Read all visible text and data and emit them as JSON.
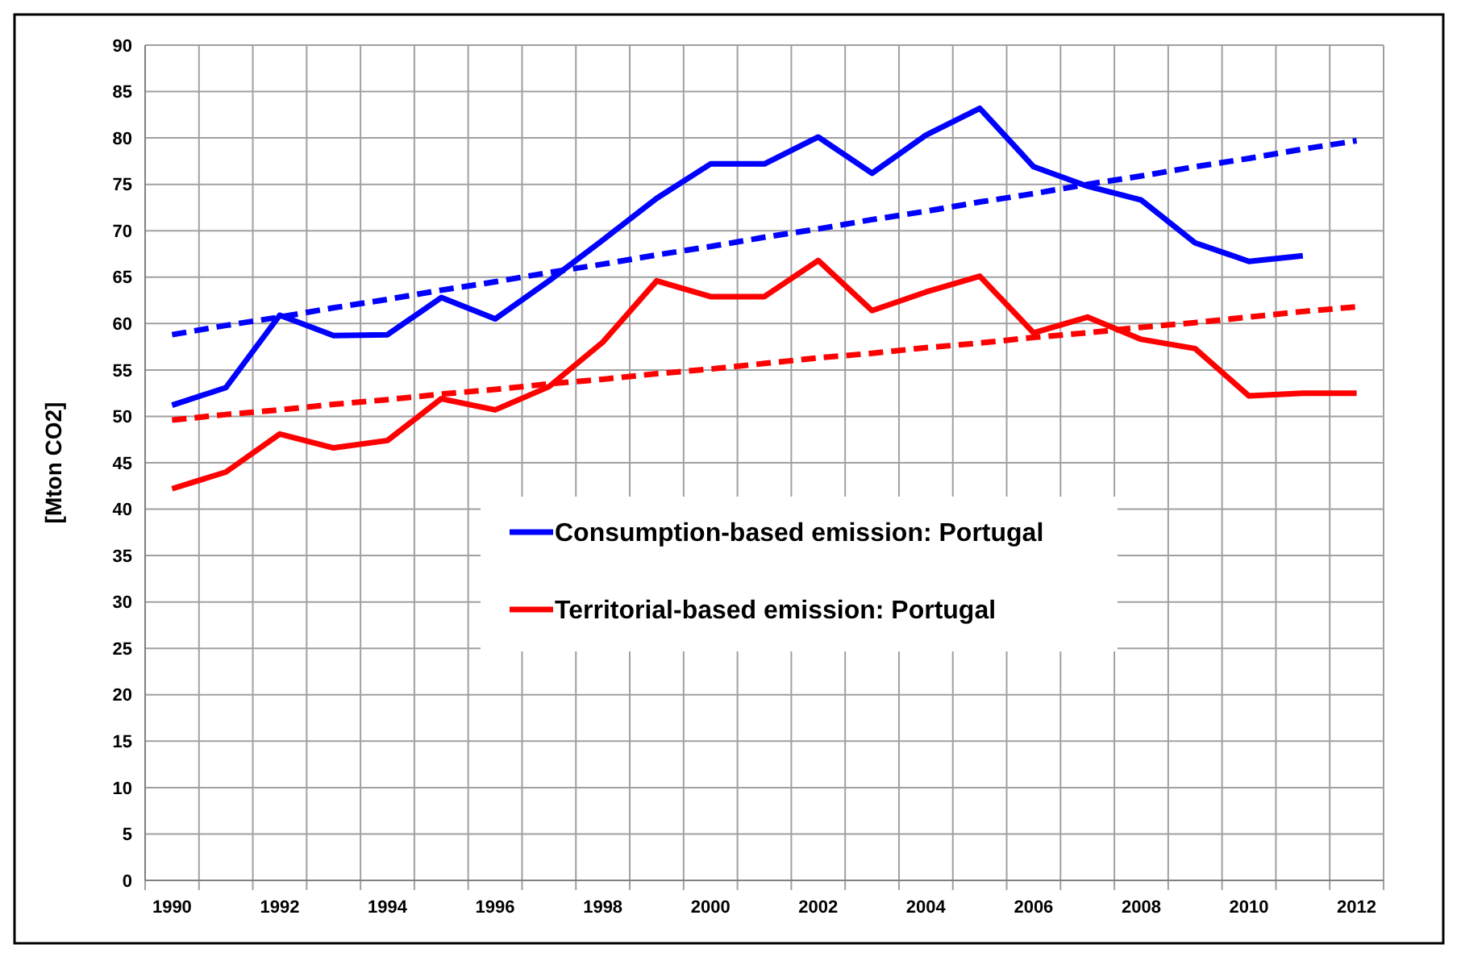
{
  "chart_data": {
    "type": "line",
    "ylabel": "[Mton CO2]",
    "categories": [
      "1990",
      null,
      "1992",
      null,
      "1994",
      null,
      "1996",
      null,
      "1998",
      null,
      "2000",
      null,
      "2002",
      null,
      "2004",
      null,
      "2006",
      null,
      "2008",
      null,
      "2010",
      null,
      "2012"
    ],
    "series": [
      {
        "name": "Consumption-based emission: Portugal",
        "color": "#0000ff",
        "values": [
          51.2,
          53.1,
          60.9,
          58.7,
          58.8,
          62.8,
          60.5,
          64.6,
          69,
          73.5,
          77.2,
          77.2,
          80.1,
          76.2,
          80.3,
          83.2,
          76.9,
          74.8,
          73.3,
          68.7,
          66.7,
          67.3,
          null
        ]
      },
      {
        "name": "Territorial-based emission: Portugal",
        "color": "#ff0000",
        "values": [
          42.2,
          44,
          48.1,
          46.6,
          47.4,
          51.9,
          50.7,
          53.2,
          58,
          64.6,
          62.9,
          62.9,
          66.8,
          61.4,
          63.4,
          65.1,
          59,
          60.7,
          58.3,
          57.3,
          52.2,
          52.5,
          52.5
        ]
      },
      {
        "type": "line",
        "color": "#0000ff",
        "line_style": "dashed",
        "values": [
          58.8,
          59.8,
          60.7,
          61.7,
          62.6,
          63.6,
          64.5,
          65.5,
          66.4,
          67.4,
          68.3,
          69.3,
          70.2,
          71.2,
          72.1,
          73.1,
          74.0,
          75.0,
          75.9,
          76.9,
          77.8,
          78.8,
          79.7
        ]
      },
      {
        "type": "line",
        "color": "#ff0000",
        "line_style": "dashed",
        "values": [
          49.6,
          50.2,
          50.7,
          51.3,
          51.8,
          52.4,
          52.9,
          53.5,
          54.0,
          54.6,
          55.1,
          55.7,
          56.3,
          56.8,
          57.4,
          57.9,
          58.5,
          59.0,
          59.6,
          60.1,
          60.7,
          61.3,
          61.8
        ]
      }
    ],
    "ylim": [
      0,
      90
    ],
    "yticks": [
      0,
      5,
      10,
      15,
      20,
      25,
      30,
      35,
      40,
      45,
      50,
      55,
      60,
      65,
      70,
      75,
      80,
      85,
      90
    ],
    "grid": true,
    "legend": "center",
    "marker": "none",
    "line_style": "solid"
  }
}
